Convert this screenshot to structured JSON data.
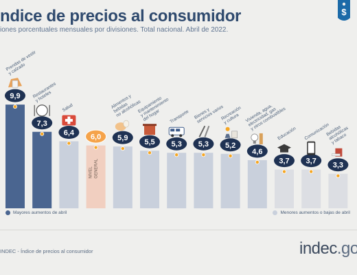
{
  "header": {
    "title": "ndice de precios al consumidor",
    "subtitle": "iones porcentuales mensuales por divisiones. Total nacional. Abril de 2022."
  },
  "legend": {
    "left_label": "Mayores aumentos de abril",
    "right_label": "Menores aumentos o bajas de abril"
  },
  "footer": {
    "source": "INDEC - Índice de precios al consumidor",
    "logo_main": "indec",
    "logo_suffix": ".gob"
  },
  "colors": {
    "high": "#4a6590",
    "mid": "#c9d0dc",
    "low": "#dcdee3",
    "general": "#f1cfc0",
    "badge": "#1f3253",
    "general_badge": "#f5a34a",
    "accent": "#f5a623",
    "tag": "#1b6aa8"
  },
  "chart_data": {
    "type": "bar",
    "categories": [
      "Prendas de vestir y calzado",
      "Restaurantes y hoteles",
      "Salud",
      "Nivel general",
      "Alimentos y bebidas no alcohólicas",
      "Equipamiento y mantenimiento del hogar",
      "Transporte",
      "Bienes y servicios varios",
      "Recreación y cultura",
      "Vivienda, agua, electricidad, gas y otros combustibles",
      "Educación",
      "Comunicación",
      "Bebidas alcohólicas y tabaco"
    ],
    "values": [
      9.9,
      7.3,
      6.4,
      6.0,
      5.9,
      5.5,
      5.3,
      5.3,
      5.2,
      4.6,
      3.7,
      3.7,
      3.3
    ],
    "value_labels": [
      "9,9",
      "7,3",
      "6,4",
      "6,0",
      "5,9",
      "5,5",
      "5,3",
      "5,3",
      "5,2",
      "4,6",
      "3,7",
      "3,7",
      "3,3"
    ],
    "category_label_lines": [
      [
        "Prendas de vestir",
        "y calzado"
      ],
      [
        "Restaurantes",
        "y hoteles"
      ],
      [
        "Salud"
      ],
      [
        "NIVEL",
        "GENERAL"
      ],
      [
        "Alimentos y",
        "bebidas",
        "no alcohólicas"
      ],
      [
        "Equipamiento",
        "y mantenimiento",
        "del hogar"
      ],
      [
        "Transporte"
      ],
      [
        "Bienes y",
        "servicios varios"
      ],
      [
        "Recreación",
        "y cultura"
      ],
      [
        "Vivienda, agua,",
        "electricidad, gas",
        "y otros combustibles"
      ],
      [
        "Educación"
      ],
      [
        "Comunicación"
      ],
      [
        "Bebidas",
        "alcohólicas",
        "y tabaco"
      ]
    ],
    "groups": [
      "high",
      "high",
      "mid",
      "general",
      "mid",
      "mid",
      "mid",
      "mid",
      "mid",
      "mid",
      "low",
      "low",
      "low"
    ],
    "icons": [
      "clothing-icon",
      "restaurant-icon",
      "health-icon",
      "",
      "food-icon",
      "home-equipment-icon",
      "transport-icon",
      "goods-services-icon",
      "recreation-icon",
      "housing-utilities-icon",
      "education-icon",
      "communication-icon",
      "alcohol-tobacco-icon"
    ],
    "ylim": [
      0,
      10.5
    ],
    "grid": false,
    "legend_position": "bottom"
  }
}
